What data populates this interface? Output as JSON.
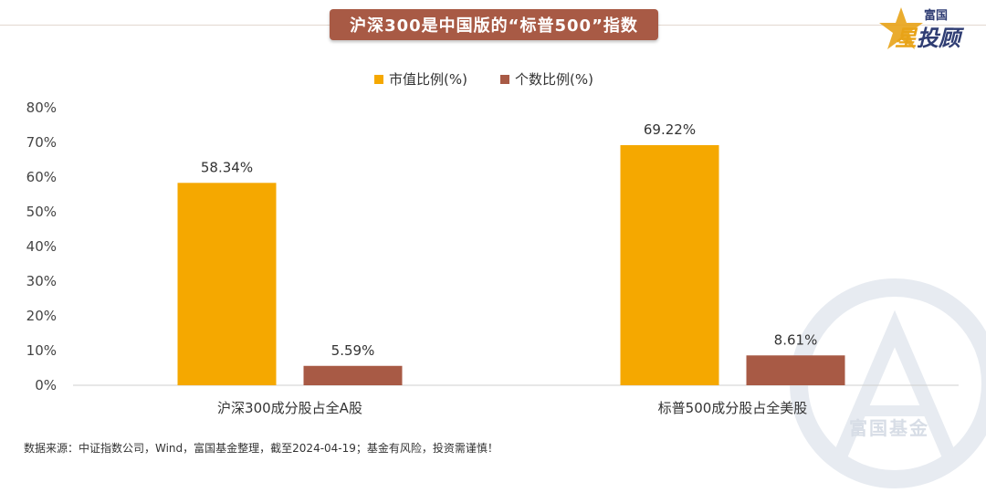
{
  "header": {
    "title": "沪深300是中国版的“标普500”指数"
  },
  "logo": {
    "top_text": "富国",
    "main_star": "星",
    "main_rest": "投顾"
  },
  "watermark": {
    "text": "富国基金"
  },
  "chart_data": {
    "type": "bar",
    "categories": [
      "沪深300成分股占全A股",
      "标普500成分股占全美股"
    ],
    "series": [
      {
        "name": "市值比例(%)",
        "values": [
          58.34,
          69.22
        ],
        "labels": [
          "58.34%",
          "69.22%"
        ],
        "color": "#f5a800"
      },
      {
        "name": "个数比例(%)",
        "values": [
          5.59,
          8.61
        ],
        "labels": [
          "5.59%",
          "8.61%"
        ],
        "color": "#a85a45"
      }
    ],
    "ylim": [
      0,
      80
    ],
    "yticks": [
      0,
      10,
      20,
      30,
      40,
      50,
      60,
      70,
      80
    ],
    "ytick_labels": [
      "0%",
      "10%",
      "20%",
      "30%",
      "40%",
      "50%",
      "60%",
      "70%",
      "80%"
    ],
    "legend_position": "top-center",
    "grid": false
  },
  "footer": {
    "source": "数据来源：中证指数公司，Wind，富国基金整理，截至2024-04-19；基金有风险，投资需谨慎！"
  }
}
